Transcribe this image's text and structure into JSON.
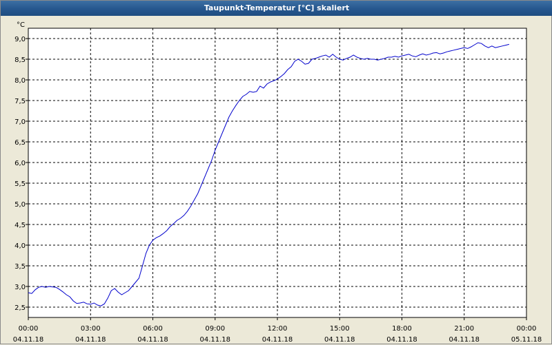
{
  "window": {
    "title": "Taupunkt-Temperatur [°C] skaliert"
  },
  "chart_data": {
    "type": "line",
    "title": "Taupunkt-Temperatur [°C] skaliert",
    "unit_label": "°C",
    "ylim": [
      2.25,
      9.25
    ],
    "xlim": [
      "04.11.18 00:00",
      "05.11.18 00:00"
    ],
    "grid": true,
    "y_ticks": [
      "9,0",
      "8,5",
      "8,0",
      "7,5",
      "7,0",
      "6,5",
      "6,0",
      "5,5",
      "5,0",
      "4,5",
      "4,0",
      "3,5",
      "3,0",
      "2,5"
    ],
    "x_ticks": [
      {
        "time": "00:00",
        "date": "04.11.18"
      },
      {
        "time": "03:00",
        "date": "04.11.18"
      },
      {
        "time": "06:00",
        "date": "04.11.18"
      },
      {
        "time": "09:00",
        "date": "04.11.18"
      },
      {
        "time": "12:00",
        "date": "04.11.18"
      },
      {
        "time": "15:00",
        "date": "04.11.18"
      },
      {
        "time": "18:00",
        "date": "04.11.18"
      },
      {
        "time": "21:00",
        "date": "04.11.18"
      },
      {
        "time": "00:00",
        "date": "05.11.18"
      }
    ],
    "series": [
      {
        "color": "#0000cc",
        "points": [
          [
            "00:00",
            2.85
          ],
          [
            "00:10",
            2.83
          ],
          [
            "00:20",
            2.92
          ],
          [
            "00:30",
            2.98
          ],
          [
            "00:40",
            3.0
          ],
          [
            "00:50",
            2.98
          ],
          [
            "01:00",
            3.0
          ],
          [
            "01:10",
            2.99
          ],
          [
            "01:20",
            2.98
          ],
          [
            "01:30",
            2.93
          ],
          [
            "01:40",
            2.87
          ],
          [
            "01:50",
            2.8
          ],
          [
            "02:00",
            2.75
          ],
          [
            "02:10",
            2.65
          ],
          [
            "02:20",
            2.59
          ],
          [
            "02:30",
            2.6
          ],
          [
            "02:40",
            2.62
          ],
          [
            "02:50",
            2.58
          ],
          [
            "03:00",
            2.57
          ],
          [
            "03:10",
            2.6
          ],
          [
            "03:20",
            2.55
          ],
          [
            "03:30",
            2.53
          ],
          [
            "03:40",
            2.58
          ],
          [
            "03:50",
            2.72
          ],
          [
            "04:00",
            2.9
          ],
          [
            "04:10",
            2.95
          ],
          [
            "04:20",
            2.86
          ],
          [
            "04:30",
            2.8
          ],
          [
            "04:40",
            2.85
          ],
          [
            "04:50",
            2.9
          ],
          [
            "05:00",
            3.0
          ],
          [
            "05:10",
            3.1
          ],
          [
            "05:20",
            3.2
          ],
          [
            "05:30",
            3.5
          ],
          [
            "05:40",
            3.8
          ],
          [
            "05:50",
            4.0
          ],
          [
            "06:00",
            4.12
          ],
          [
            "06:10",
            4.18
          ],
          [
            "06:20",
            4.22
          ],
          [
            "06:30",
            4.28
          ],
          [
            "06:40",
            4.35
          ],
          [
            "06:50",
            4.45
          ],
          [
            "07:00",
            4.52
          ],
          [
            "07:10",
            4.6
          ],
          [
            "07:20",
            4.65
          ],
          [
            "07:30",
            4.72
          ],
          [
            "07:40",
            4.82
          ],
          [
            "07:50",
            4.95
          ],
          [
            "08:00",
            5.1
          ],
          [
            "08:10",
            5.25
          ],
          [
            "08:20",
            5.45
          ],
          [
            "08:30",
            5.65
          ],
          [
            "08:40",
            5.85
          ],
          [
            "08:50",
            6.05
          ],
          [
            "09:00",
            6.3
          ],
          [
            "09:10",
            6.5
          ],
          [
            "09:20",
            6.7
          ],
          [
            "09:30",
            6.9
          ],
          [
            "09:40",
            7.1
          ],
          [
            "09:50",
            7.25
          ],
          [
            "10:00",
            7.38
          ],
          [
            "10:10",
            7.5
          ],
          [
            "10:20",
            7.6
          ],
          [
            "10:30",
            7.65
          ],
          [
            "10:40",
            7.72
          ],
          [
            "10:50",
            7.7
          ],
          [
            "11:00",
            7.72
          ],
          [
            "11:10",
            7.85
          ],
          [
            "11:20",
            7.8
          ],
          [
            "11:30",
            7.9
          ],
          [
            "11:40",
            7.95
          ],
          [
            "11:50",
            7.98
          ],
          [
            "12:00",
            8.02
          ],
          [
            "12:10",
            8.08
          ],
          [
            "12:20",
            8.15
          ],
          [
            "12:30",
            8.25
          ],
          [
            "12:40",
            8.32
          ],
          [
            "12:50",
            8.45
          ],
          [
            "13:00",
            8.5
          ],
          [
            "13:10",
            8.45
          ],
          [
            "13:20",
            8.38
          ],
          [
            "13:30",
            8.4
          ],
          [
            "13:40",
            8.5
          ],
          [
            "13:50",
            8.52
          ],
          [
            "14:00",
            8.55
          ],
          [
            "14:10",
            8.58
          ],
          [
            "14:20",
            8.6
          ],
          [
            "14:30",
            8.55
          ],
          [
            "14:40",
            8.62
          ],
          [
            "14:50",
            8.55
          ],
          [
            "15:00",
            8.5
          ],
          [
            "15:10",
            8.48
          ],
          [
            "15:20",
            8.52
          ],
          [
            "15:30",
            8.55
          ],
          [
            "15:40",
            8.6
          ],
          [
            "15:50",
            8.55
          ],
          [
            "16:00",
            8.52
          ],
          [
            "16:10",
            8.5
          ],
          [
            "16:20",
            8.52
          ],
          [
            "16:30",
            8.5
          ],
          [
            "16:40",
            8.5
          ],
          [
            "16:50",
            8.48
          ],
          [
            "17:00",
            8.5
          ],
          [
            "17:10",
            8.52
          ],
          [
            "17:20",
            8.55
          ],
          [
            "17:30",
            8.55
          ],
          [
            "17:40",
            8.57
          ],
          [
            "17:50",
            8.55
          ],
          [
            "18:00",
            8.58
          ],
          [
            "18:10",
            8.6
          ],
          [
            "18:20",
            8.62
          ],
          [
            "18:30",
            8.58
          ],
          [
            "18:40",
            8.56
          ],
          [
            "18:50",
            8.6
          ],
          [
            "19:00",
            8.63
          ],
          [
            "19:10",
            8.6
          ],
          [
            "19:20",
            8.62
          ],
          [
            "19:30",
            8.65
          ],
          [
            "19:40",
            8.66
          ],
          [
            "19:50",
            8.63
          ],
          [
            "20:00",
            8.65
          ],
          [
            "20:10",
            8.68
          ],
          [
            "20:20",
            8.7
          ],
          [
            "20:30",
            8.72
          ],
          [
            "20:40",
            8.74
          ],
          [
            "20:50",
            8.76
          ],
          [
            "21:00",
            8.78
          ],
          [
            "21:10",
            8.76
          ],
          [
            "21:20",
            8.8
          ],
          [
            "21:30",
            8.85
          ],
          [
            "21:40",
            8.9
          ],
          [
            "21:50",
            8.88
          ],
          [
            "22:00",
            8.82
          ],
          [
            "22:10",
            8.78
          ],
          [
            "22:20",
            8.82
          ],
          [
            "22:30",
            8.78
          ],
          [
            "22:40",
            8.8
          ],
          [
            "22:50",
            8.82
          ],
          [
            "23:00",
            8.84
          ],
          [
            "23:10",
            8.86
          ]
        ]
      }
    ]
  }
}
